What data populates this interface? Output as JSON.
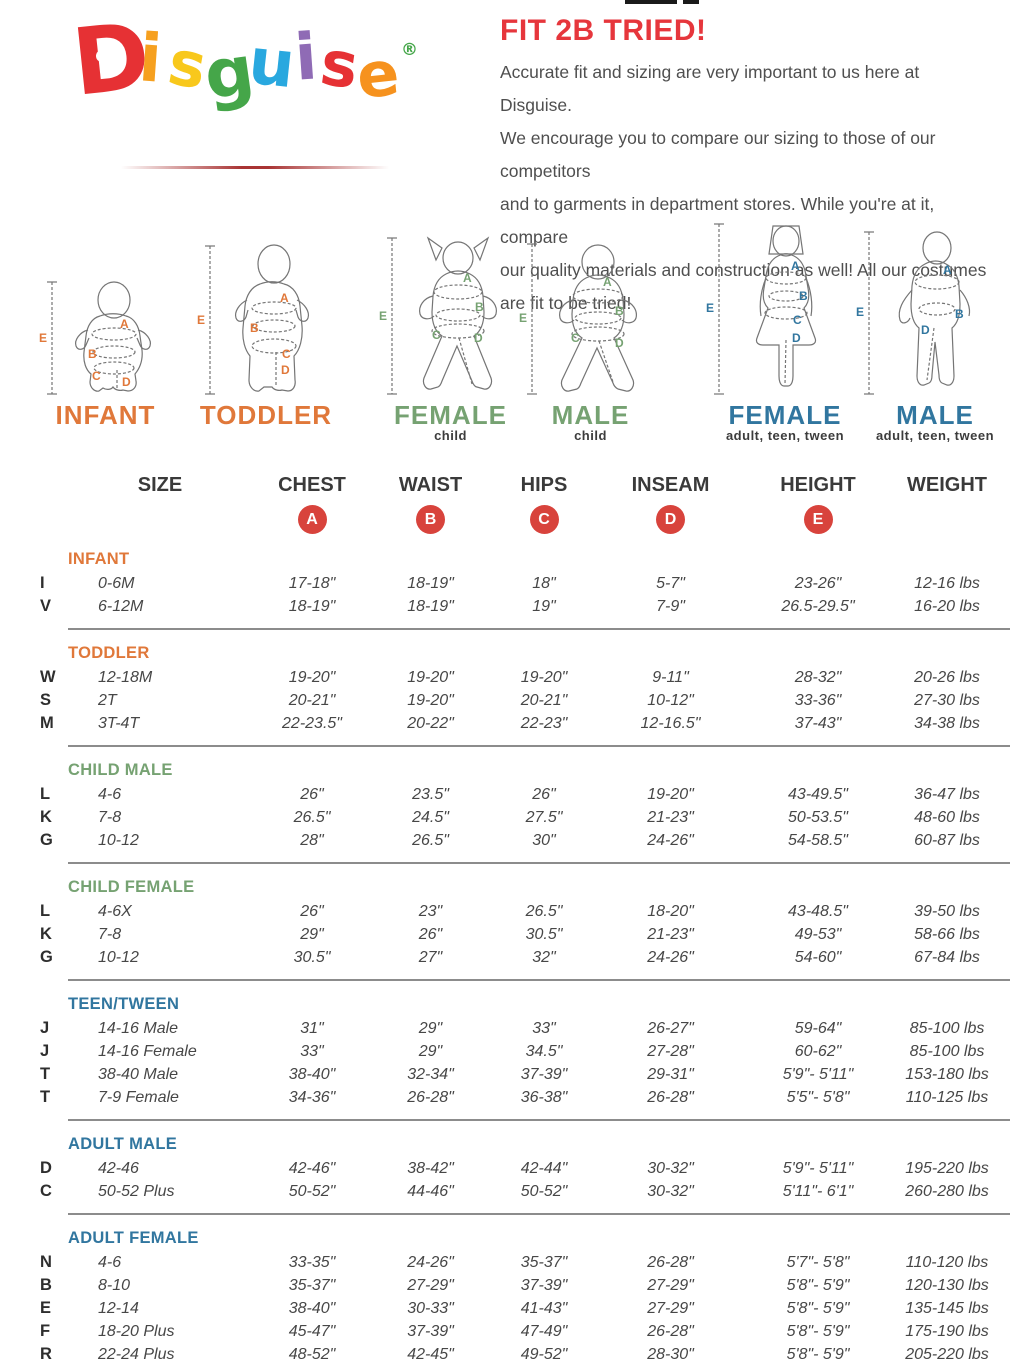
{
  "artifact_note": "cropped black marks at very top edge",
  "logo": {
    "letters": [
      {
        "char": "D",
        "color": "#e63134"
      },
      {
        "char": "i",
        "color": "#f6a01f"
      },
      {
        "char": "s",
        "color": "#f8c81c"
      },
      {
        "char": "g",
        "color": "#45a649"
      },
      {
        "char": "u",
        "color": "#29a8df"
      },
      {
        "char": "i",
        "color": "#8f6bb5"
      },
      {
        "char": "s",
        "color": "#e63134"
      },
      {
        "char": "e",
        "color": "#f6921e"
      }
    ],
    "registered_mark": "®",
    "registered_color": "#45a649"
  },
  "intro": {
    "title": "FIT 2B TRIED!",
    "lines": [
      "Accurate fit and sizing are very important to us here at Disguise.",
      "We encourage you to compare our sizing to those of our competitors",
      "and to garments in department stores. While you're at it, compare",
      "our quality materials and construction as well! All our costumes",
      "are fit to be tried!"
    ]
  },
  "measure_letters": [
    "A",
    "B",
    "C",
    "D",
    "E"
  ],
  "figures": [
    {
      "id": "infant",
      "label": "INFANT",
      "sublabel": "",
      "label_color": "#e0783a"
    },
    {
      "id": "toddler",
      "label": "TODDLER",
      "sublabel": "",
      "label_color": "#e0783a"
    },
    {
      "id": "female-child",
      "label": "FEMALE",
      "sublabel": "child",
      "label_color": "#76a272"
    },
    {
      "id": "male-child",
      "label": "MALE",
      "sublabel": "child",
      "label_color": "#76a272"
    },
    {
      "id": "female-adult",
      "label": "FEMALE",
      "sublabel": "adult, teen, tween",
      "label_color": "#31769f"
    },
    {
      "id": "male-adult",
      "label": "MALE",
      "sublabel": "adult, teen, tween",
      "label_color": "#31769f"
    }
  ],
  "size_chart": {
    "columns": [
      "SIZE",
      "CHEST",
      "WAIST",
      "HIPS",
      "INSEAM",
      "HEIGHT",
      "WEIGHT"
    ],
    "badge_color": "#d8433c",
    "sections": [
      {
        "title": "INFANT",
        "color": "#e0783a",
        "rows": [
          {
            "letter": "I",
            "size": "0-6M",
            "chest": "17-18\"",
            "waist": "18-19\"",
            "hips": "18\"",
            "inseam": "5-7\"",
            "height": "23-26\"",
            "weight": "12-16 lbs"
          },
          {
            "letter": "V",
            "size": "6-12M",
            "chest": "18-19\"",
            "waist": "18-19\"",
            "hips": "19\"",
            "inseam": "7-9\"",
            "height": "26.5-29.5\"",
            "weight": "16-20 lbs"
          }
        ]
      },
      {
        "title": "TODDLER",
        "color": "#e0783a",
        "rows": [
          {
            "letter": "W",
            "size": "12-18M",
            "chest": "19-20\"",
            "waist": "19-20\"",
            "hips": "19-20\"",
            "inseam": "9-11\"",
            "height": "28-32\"",
            "weight": "20-26 lbs"
          },
          {
            "letter": "S",
            "size": "2T",
            "chest": "20-21\"",
            "waist": "19-20\"",
            "hips": "20-21\"",
            "inseam": "10-12\"",
            "height": "33-36\"",
            "weight": "27-30 lbs"
          },
          {
            "letter": "M",
            "size": "3T-4T",
            "chest": "22-23.5\"",
            "waist": "20-22\"",
            "hips": "22-23\"",
            "inseam": "12-16.5\"",
            "height": "37-43\"",
            "weight": "34-38 lbs"
          }
        ]
      },
      {
        "title": "CHILD MALE",
        "color": "#76a272",
        "rows": [
          {
            "letter": "L",
            "size": "4-6",
            "chest": "26\"",
            "waist": "23.5\"",
            "hips": "26\"",
            "inseam": "19-20\"",
            "height": "43-49.5\"",
            "weight": "36-47 lbs"
          },
          {
            "letter": "K",
            "size": "7-8",
            "chest": "26.5\"",
            "waist": "24.5\"",
            "hips": "27.5\"",
            "inseam": "21-23\"",
            "height": "50-53.5\"",
            "weight": "48-60 lbs"
          },
          {
            "letter": "G",
            "size": "10-12",
            "chest": "28\"",
            "waist": "26.5\"",
            "hips": "30\"",
            "inseam": "24-26\"",
            "height": "54-58.5\"",
            "weight": "60-87 lbs"
          }
        ]
      },
      {
        "title": "CHILD FEMALE",
        "color": "#76a272",
        "rows": [
          {
            "letter": "L",
            "size": "4-6X",
            "chest": "26\"",
            "waist": "23\"",
            "hips": "26.5\"",
            "inseam": "18-20\"",
            "height": "43-48.5\"",
            "weight": "39-50 lbs"
          },
          {
            "letter": "K",
            "size": "7-8",
            "chest": "29\"",
            "waist": "26\"",
            "hips": "30.5\"",
            "inseam": "21-23\"",
            "height": "49-53\"",
            "weight": "58-66 lbs"
          },
          {
            "letter": "G",
            "size": "10-12",
            "chest": "30.5\"",
            "waist": "27\"",
            "hips": "32\"",
            "inseam": "24-26\"",
            "height": "54-60\"",
            "weight": "67-84 lbs"
          }
        ]
      },
      {
        "title": "TEEN/TWEEN",
        "color": "#31769f",
        "rows": [
          {
            "letter": "J",
            "size": "14-16 Male",
            "chest": "31\"",
            "waist": "29\"",
            "hips": "33\"",
            "inseam": "26-27\"",
            "height": "59-64\"",
            "weight": "85-100 lbs"
          },
          {
            "letter": "J",
            "size": "14-16 Female",
            "chest": "33\"",
            "waist": "29\"",
            "hips": "34.5\"",
            "inseam": "27-28\"",
            "height": "60-62\"",
            "weight": "85-100 lbs"
          },
          {
            "letter": "T",
            "size": "38-40 Male",
            "chest": "38-40\"",
            "waist": "32-34\"",
            "hips": "37-39\"",
            "inseam": "29-31\"",
            "height": "5'9\"- 5'11\"",
            "weight": "153-180 lbs"
          },
          {
            "letter": "T",
            "size": "7-9 Female",
            "chest": "34-36\"",
            "waist": "26-28\"",
            "hips": "36-38\"",
            "inseam": "26-28\"",
            "height": "5'5\"- 5'8\"",
            "weight": "110-125 lbs"
          }
        ]
      },
      {
        "title": "ADULT MALE",
        "color": "#31769f",
        "rows": [
          {
            "letter": "D",
            "size": "42-46",
            "chest": "42-46\"",
            "waist": "38-42\"",
            "hips": "42-44\"",
            "inseam": "30-32\"",
            "height": "5'9\"- 5'11\"",
            "weight": "195-220 lbs"
          },
          {
            "letter": "C",
            "size": "50-52 Plus",
            "chest": "50-52\"",
            "waist": "44-46\"",
            "hips": "50-52\"",
            "inseam": "30-32\"",
            "height": "5'11\"- 6'1\"",
            "weight": "260-280 lbs"
          }
        ]
      },
      {
        "title": "ADULT FEMALE",
        "color": "#31769f",
        "rows": [
          {
            "letter": "N",
            "size": "4-6",
            "chest": "33-35\"",
            "waist": "24-26\"",
            "hips": "35-37\"",
            "inseam": "26-28\"",
            "height": "5'7\"- 5'8\"",
            "weight": "110-120 lbs"
          },
          {
            "letter": "B",
            "size": "8-10",
            "chest": "35-37\"",
            "waist": "27-29\"",
            "hips": "37-39\"",
            "inseam": "27-29\"",
            "height": "5'8\"- 5'9\"",
            "weight": "120-130 lbs"
          },
          {
            "letter": "E",
            "size": "12-14",
            "chest": "38-40\"",
            "waist": "30-33\"",
            "hips": "41-43\"",
            "inseam": "27-29\"",
            "height": "5'8\"- 5'9\"",
            "weight": "135-145 lbs"
          },
          {
            "letter": "F",
            "size": "18-20 Plus",
            "chest": "45-47\"",
            "waist": "37-39\"",
            "hips": "47-49\"",
            "inseam": "26-28\"",
            "height": "5'8\"- 5'9\"",
            "weight": "175-190 lbs"
          },
          {
            "letter": "R",
            "size": "22-24 Plus",
            "chest": "48-52\"",
            "waist": "42-45\"",
            "hips": "49-52\"",
            "inseam": "28-30\"",
            "height": "5'8\"- 5'9\"",
            "weight": "205-220 lbs"
          }
        ]
      }
    ]
  }
}
